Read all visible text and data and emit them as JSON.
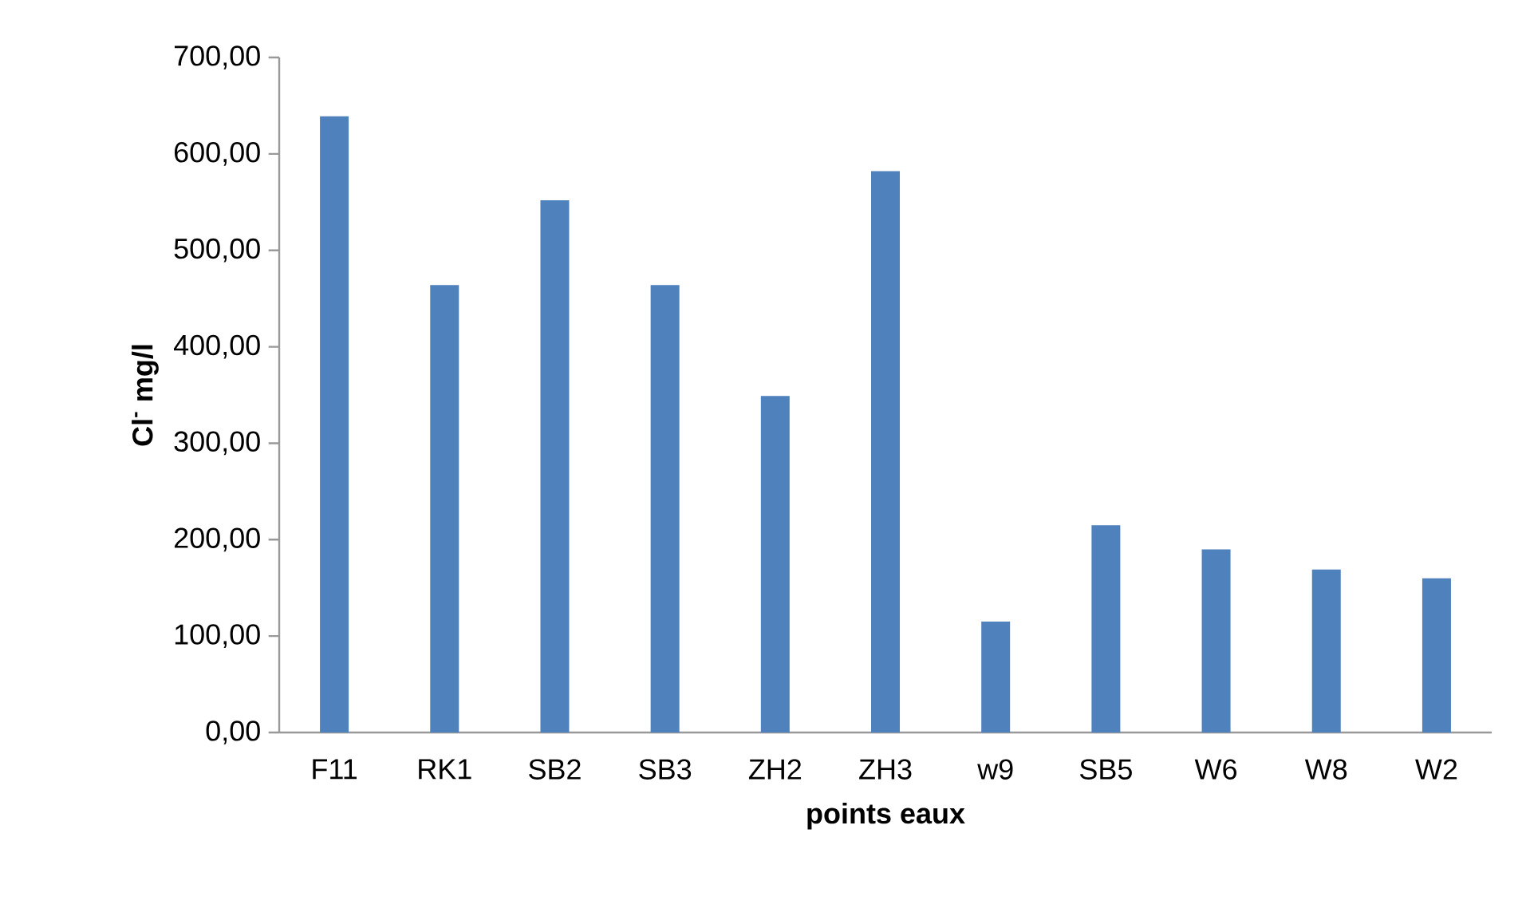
{
  "chart_data": {
    "type": "bar",
    "xlabel": "points eaux",
    "ylabel": "Cl$^{-}$ mg/l",
    "categories": [
      "F11",
      "RK1",
      "SB2",
      "SB3",
      "ZH2",
      "ZH3",
      "w9",
      "SB5",
      "W6",
      "W8",
      "W2"
    ],
    "values": [
      639,
      464,
      552,
      464,
      349,
      582,
      115,
      215,
      190,
      169,
      160
    ],
    "color": "#4f81bd",
    "ylim": [
      0,
      700
    ],
    "yticks": [
      {
        "value": 0,
        "label": "0,00"
      },
      {
        "value": 100,
        "label": "100,00"
      },
      {
        "value": 200,
        "label": "200,00"
      },
      {
        "value": 300,
        "label": "300,00"
      },
      {
        "value": 400,
        "label": "400,00"
      },
      {
        "value": 500,
        "label": "500,00"
      },
      {
        "value": 600,
        "label": "600,00"
      },
      {
        "value": 700,
        "label": "700,00"
      }
    ],
    "grid": false
  }
}
